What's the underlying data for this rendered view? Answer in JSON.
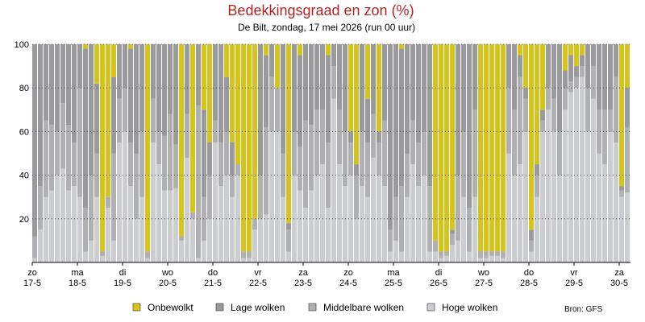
{
  "chart_data": {
    "type": "stacked-bar",
    "title": "Bedekkingsgraad en zon (%)",
    "subtitle": "De Bilt, zondag, 17 mei 2026 (run 00 uur)",
    "source": "Bron: GFS",
    "categories": [
      "zo 17-5",
      null,
      null,
      null,
      null,
      null,
      null,
      null,
      "ma 18-5",
      null,
      null,
      null,
      null,
      null,
      null,
      null,
      "di 19-5",
      null,
      null,
      null,
      null,
      null,
      null,
      null,
      "wo 20-5",
      null,
      null,
      null,
      null,
      null,
      null,
      null,
      "do 21-5",
      null,
      null,
      null,
      null,
      null,
      null,
      null,
      "vr 22-5",
      null,
      null,
      null,
      null,
      null,
      null,
      null,
      "za 23-5",
      null,
      null,
      null,
      null,
      null,
      null,
      null,
      "zo 24-5",
      null,
      null,
      null,
      null,
      null,
      null,
      null,
      "ma 25-5",
      null,
      null,
      null,
      null,
      null,
      null,
      null,
      "di 26-5",
      null,
      null,
      null,
      null,
      null,
      null,
      null,
      "wo 27-5",
      null,
      null,
      null,
      null,
      null,
      null,
      null,
      "do 28-5",
      null,
      null,
      null,
      null,
      null,
      null,
      null,
      "vr 29-5",
      null,
      null,
      null,
      null,
      null,
      null,
      null,
      "za 30-5",
      null
    ],
    "series": [
      {
        "name": "Onbewolkt",
        "color": "#d4c41c",
        "values": [
          0,
          0,
          0,
          0,
          0,
          0,
          0,
          0,
          0,
          2,
          0,
          18,
          95,
          70,
          15,
          0,
          0,
          2,
          0,
          0,
          95,
          0,
          0,
          0,
          0,
          0,
          88,
          0,
          77,
          0,
          30,
          45,
          0,
          0,
          15,
          45,
          55,
          95,
          95,
          80,
          0,
          5,
          0,
          20,
          0,
          82,
          0,
          5,
          0,
          0,
          0,
          0,
          5,
          0,
          0,
          0,
          40,
          55,
          0,
          25,
          0,
          40,
          0,
          0,
          0,
          2,
          0,
          0,
          0,
          0,
          0,
          90,
          95,
          95,
          85,
          0,
          0,
          0,
          0,
          95,
          95,
          95,
          95,
          95,
          0,
          0,
          5,
          20,
          85,
          55,
          30,
          0,
          0,
          0,
          12,
          5,
          10,
          5,
          0,
          0,
          0,
          0,
          0,
          0,
          65,
          20
        ]
      },
      {
        "name": "Lage wolken",
        "color": "#9a9a9c",
        "values": [
          88,
          65,
          35,
          37,
          40,
          27,
          37,
          45,
          20,
          73,
          60,
          32,
          0,
          0,
          35,
          25,
          20,
          43,
          50,
          40,
          0,
          25,
          40,
          42,
          32,
          46,
          0,
          32,
          0,
          28,
          40,
          15,
          35,
          45,
          25,
          15,
          0,
          0,
          0,
          0,
          60,
          33,
          15,
          0,
          50,
          3,
          40,
          42,
          35,
          37,
          30,
          30,
          40,
          10,
          30,
          40,
          5,
          5,
          40,
          20,
          32,
          5,
          35,
          85,
          70,
          63,
          50,
          35,
          45,
          40,
          65,
          0,
          0,
          0,
          2,
          60,
          40,
          75,
          30,
          0,
          0,
          0,
          0,
          0,
          20,
          30,
          10,
          5,
          5,
          5,
          5,
          20,
          25,
          40,
          8,
          12,
          5,
          5,
          20,
          10,
          30,
          30,
          30,
          15,
          2,
          18
        ]
      },
      {
        "name": "Middelbare wolken",
        "color": "#b0b0b2",
        "values": [
          10,
          20,
          35,
          30,
          20,
          30,
          30,
          20,
          50,
          20,
          30,
          20,
          2,
          5,
          40,
          20,
          20,
          20,
          30,
          30,
          3,
          20,
          15,
          25,
          35,
          20,
          2,
          20,
          3,
          70,
          20,
          20,
          10,
          20,
          20,
          10,
          5,
          3,
          3,
          5,
          20,
          40,
          25,
          20,
          20,
          10,
          20,
          20,
          40,
          30,
          30,
          25,
          30,
          15,
          25,
          25,
          15,
          20,
          25,
          25,
          20,
          15,
          30,
          10,
          20,
          30,
          20,
          20,
          20,
          20,
          30,
          5,
          3,
          2,
          5,
          30,
          30,
          20,
          40,
          3,
          3,
          2,
          2,
          3,
          30,
          30,
          40,
          15,
          5,
          10,
          5,
          10,
          15,
          20,
          10,
          5,
          5,
          5,
          20,
          15,
          20,
          25,
          10,
          30,
          3,
          30
        ]
      },
      {
        "name": "Hoge wolken",
        "color": "#cbcdd0",
        "values": [
          2,
          15,
          30,
          33,
          40,
          43,
          33,
          35,
          30,
          5,
          10,
          30,
          3,
          25,
          10,
          55,
          60,
          35,
          20,
          30,
          2,
          55,
          45,
          33,
          33,
          34,
          10,
          48,
          20,
          2,
          10,
          20,
          55,
          35,
          40,
          30,
          40,
          2,
          2,
          15,
          20,
          22,
          60,
          60,
          30,
          5,
          40,
          33,
          25,
          33,
          40,
          45,
          25,
          75,
          45,
          35,
          40,
          20,
          35,
          30,
          48,
          40,
          35,
          5,
          10,
          5,
          30,
          45,
          35,
          40,
          5,
          5,
          2,
          3,
          8,
          10,
          30,
          5,
          30,
          2,
          2,
          3,
          3,
          2,
          50,
          40,
          45,
          60,
          5,
          30,
          60,
          70,
          60,
          40,
          70,
          78,
          80,
          85,
          60,
          75,
          50,
          45,
          60,
          55,
          30,
          32
        ]
      }
    ],
    "ylim": [
      0,
      100
    ],
    "yticks": [
      20,
      40,
      60,
      80,
      100
    ],
    "grid": true
  }
}
